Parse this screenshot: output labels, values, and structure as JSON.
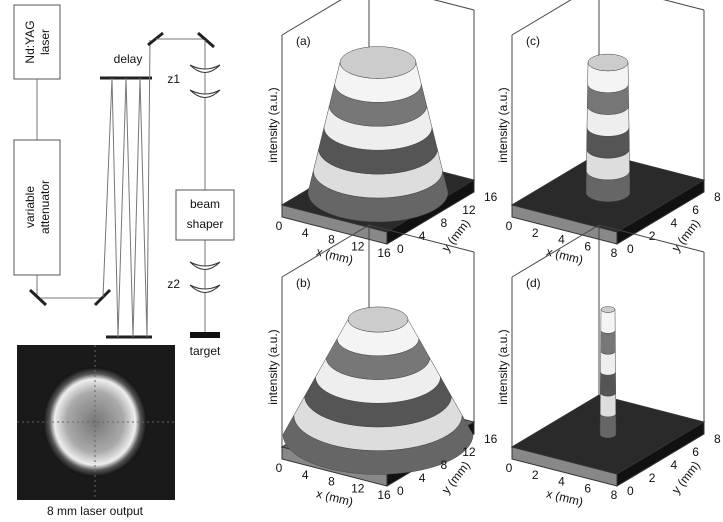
{
  "setup": {
    "laser": [
      "Nd:YAG",
      "laser"
    ],
    "attenuator": [
      "variable",
      "attenuator"
    ],
    "delay": "delay",
    "z1": "z1",
    "shaper": [
      "beam",
      "shaper"
    ],
    "z2": "z2",
    "target": "target",
    "photo_caption": "8 mm laser output"
  },
  "panels": [
    {
      "label": "(a)",
      "z_label": "intensity (a.u.)",
      "x_label": "x (mm)",
      "y_label": "y (mm)",
      "x_ticks": [
        "0",
        "4",
        "8",
        "12",
        "16"
      ],
      "y_ticks": [
        "0",
        "4",
        "8",
        "12",
        "16"
      ]
    },
    {
      "label": "(c)",
      "z_label": "intensity (a.u.)",
      "x_label": "x (mm)",
      "y_label": "y (mm)",
      "x_ticks": [
        "0",
        "2",
        "4",
        "6",
        "8"
      ],
      "y_ticks": [
        "0",
        "2",
        "4",
        "6",
        "8"
      ]
    },
    {
      "label": "(b)",
      "z_label": "intensity (a.u.)",
      "x_label": "x (mm)",
      "y_label": "y (mm)",
      "x_ticks": [
        "0",
        "4",
        "8",
        "12",
        "16"
      ],
      "y_ticks": [
        "0",
        "4",
        "8",
        "12",
        "16"
      ]
    },
    {
      "label": "(d)",
      "z_label": "intensity (a.u.)",
      "x_label": "x (mm)",
      "y_label": "y (mm)",
      "x_ticks": [
        "0",
        "2",
        "4",
        "6",
        "8"
      ],
      "y_ticks": [
        "0",
        "2",
        "4",
        "6",
        "8"
      ]
    }
  ]
}
